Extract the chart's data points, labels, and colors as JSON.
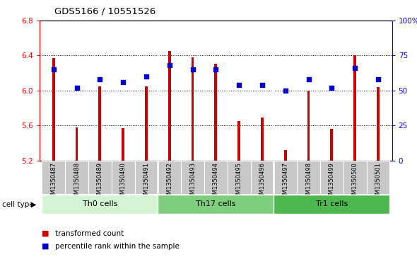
{
  "title": "GDS5166 / 10551526",
  "samples": [
    "GSM1350487",
    "GSM1350488",
    "GSM1350489",
    "GSM1350490",
    "GSM1350491",
    "GSM1350492",
    "GSM1350493",
    "GSM1350494",
    "GSM1350495",
    "GSM1350496",
    "GSM1350497",
    "GSM1350498",
    "GSM1350499",
    "GSM1350500",
    "GSM1350501"
  ],
  "transformed_count": [
    6.37,
    5.58,
    6.05,
    5.57,
    6.05,
    6.45,
    6.38,
    6.31,
    5.65,
    5.69,
    5.32,
    6.0,
    5.56,
    6.4,
    6.04
  ],
  "percentile_rank": [
    65,
    52,
    58,
    56,
    60,
    68,
    65,
    65,
    54,
    54,
    50,
    58,
    52,
    66,
    58
  ],
  "cell_groups": [
    {
      "label": "Th0 cells",
      "start": 0,
      "end": 4,
      "color": "#d4f5d4"
    },
    {
      "label": "Th17 cells",
      "start": 5,
      "end": 9,
      "color": "#7dce7d"
    },
    {
      "label": "Tr1 cells",
      "start": 10,
      "end": 14,
      "color": "#4db84d"
    }
  ],
  "ylim_left": [
    5.2,
    6.8
  ],
  "ylim_right": [
    0,
    100
  ],
  "yticks_left": [
    5.2,
    5.6,
    6.0,
    6.4,
    6.8
  ],
  "yticks_right": [
    0,
    25,
    50,
    75,
    100
  ],
  "ytick_labels_right": [
    "0",
    "25",
    "50",
    "75",
    "100%"
  ],
  "bar_color": "#cc0000",
  "dot_color": "#0000cc",
  "bar_width": 0.12,
  "baseline": 5.2,
  "dot_size": 16,
  "xtick_bg": "#c8c8c8"
}
